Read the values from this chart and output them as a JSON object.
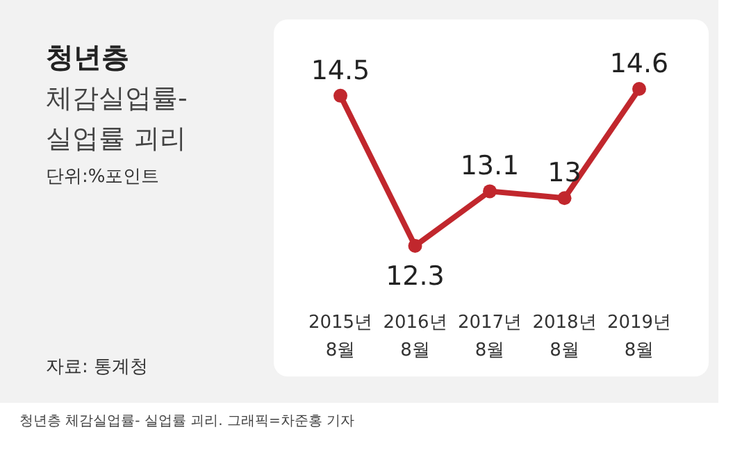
{
  "chart_data": {
    "type": "line",
    "title": "청년층",
    "subtitle": "체감실업률-\n실업률 괴리",
    "categories": [
      "2015년\n8월",
      "2016년\n8월",
      "2017년\n8월",
      "2018년\n8월",
      "2019년\n8월"
    ],
    "values": [
      14.5,
      12.3,
      13.1,
      13,
      14.6
    ],
    "color": "#c1272d",
    "data_labels": true,
    "marker": "circle",
    "annotations": [
      "단위:%포인트",
      "자료: 통계청",
      "청년층 체감실업률- 실업률 괴리. 그래픽=차준홍 기자"
    ]
  }
}
